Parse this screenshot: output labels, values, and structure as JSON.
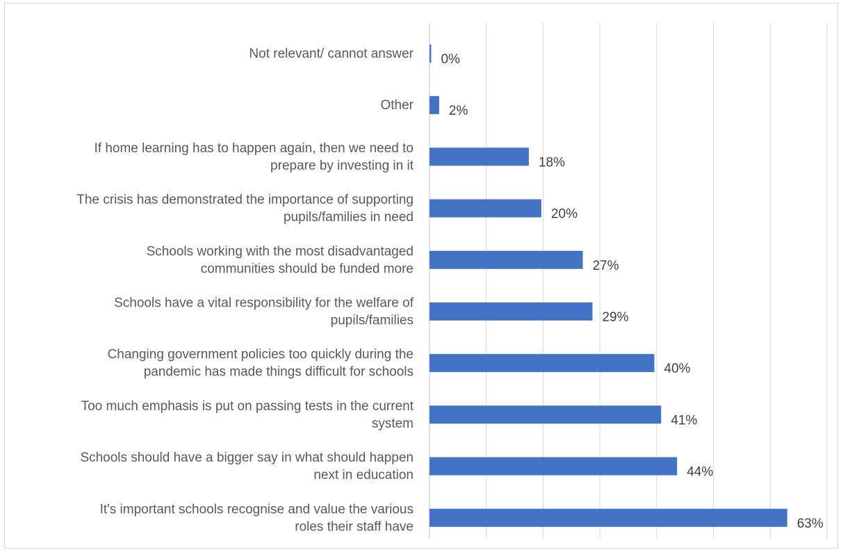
{
  "chart_data": {
    "type": "bar",
    "orientation": "horizontal",
    "title": "",
    "xlabel": "",
    "ylabel": "",
    "categories": [
      [
        "Not relevant/ cannot answer"
      ],
      [
        "Other"
      ],
      [
        "If home learning has to happen again, then we need to",
        "prepare by investing in it"
      ],
      [
        "The crisis has demonstrated the importance of supporting",
        "pupils/families in need"
      ],
      [
        "Schools working with the most disadvantaged",
        "communities should be funded more"
      ],
      [
        "Schools have a vital responsibility for the welfare of",
        "pupils/families"
      ],
      [
        "Changing government policies too quickly during the",
        "pandemic has made things difficult for schools"
      ],
      [
        "Too much emphasis is put on passing tests in the current",
        "system"
      ],
      [
        "Schools should have a bigger say in what should happen",
        "next in education"
      ],
      [
        "It's important schools recognise and value the various",
        "roles their staff have"
      ]
    ],
    "values": [
      0.3,
      1.7,
      17.5,
      19.7,
      27.0,
      28.7,
      39.6,
      40.8,
      43.6,
      63.0
    ],
    "data_labels": [
      "0%",
      "2%",
      "18%",
      "20%",
      "27%",
      "29%",
      "40%",
      "41%",
      "44%",
      "63%"
    ],
    "xlim": [
      0,
      70
    ],
    "gridlines_x": [
      0,
      10,
      20,
      30,
      40,
      50,
      60,
      70
    ],
    "grid": true,
    "legend": "none",
    "bar_color": "#4472c4"
  }
}
